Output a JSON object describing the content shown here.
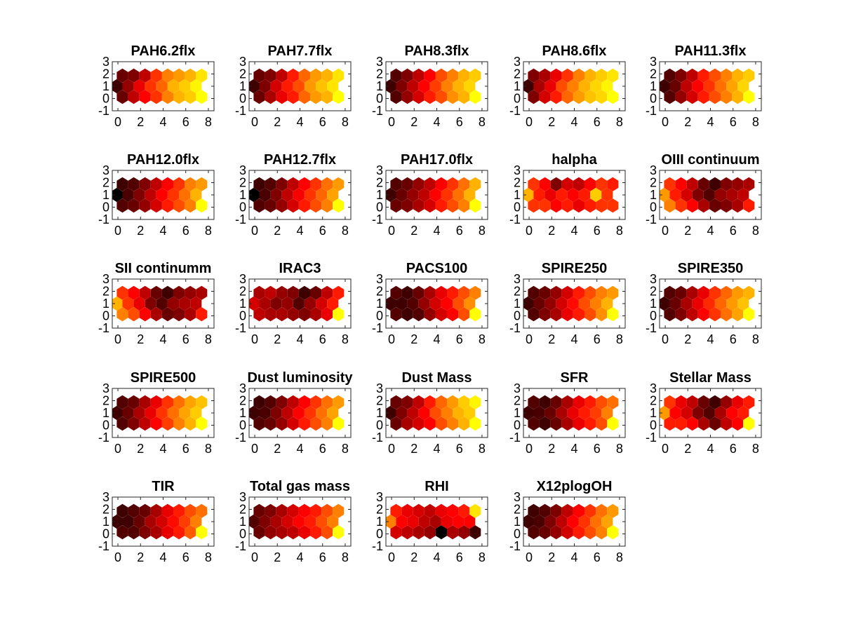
{
  "chart_data": {
    "type": "heatmap",
    "grid": false,
    "colormap": "hot",
    "xlim": [
      -0.5,
      8.5
    ],
    "ylim": [
      -1,
      3
    ],
    "xticks": [
      "0",
      "2",
      "4",
      "6",
      "8"
    ],
    "yticks": [
      "-1",
      "0",
      "1",
      "2",
      "3"
    ],
    "colors": {
      "low": "#000000",
      "high": "#ffff00"
    },
    "hex_grid": {
      "columns": 8,
      "rows": 3
    },
    "panels": [
      {
        "title": "PAH6.2flx",
        "values": [
          [
            0.15,
            0.2,
            0.35,
            0.6,
            0.75,
            0.8,
            0.85,
            0.95
          ],
          [
            0.05,
            0.25,
            0.45,
            0.6,
            0.7,
            0.85,
            0.9,
            0.98
          ],
          [
            0.15,
            0.35,
            0.5,
            0.6,
            0.75,
            0.85,
            0.9,
            1.0
          ]
        ]
      },
      {
        "title": "PAH7.7flx",
        "values": [
          [
            0.15,
            0.2,
            0.35,
            0.55,
            0.7,
            0.8,
            0.85,
            0.95
          ],
          [
            0.05,
            0.2,
            0.4,
            0.55,
            0.65,
            0.8,
            0.88,
            0.95
          ],
          [
            0.15,
            0.3,
            0.45,
            0.55,
            0.7,
            0.8,
            0.85,
            1.0
          ]
        ]
      },
      {
        "title": "PAH8.3flx",
        "values": [
          [
            0.1,
            0.2,
            0.35,
            0.5,
            0.65,
            0.75,
            0.85,
            0.9
          ],
          [
            0.05,
            0.2,
            0.35,
            0.5,
            0.62,
            0.75,
            0.85,
            0.92
          ],
          [
            0.1,
            0.25,
            0.4,
            0.55,
            0.65,
            0.78,
            0.85,
            1.0
          ]
        ]
      },
      {
        "title": "PAH8.6flx",
        "values": [
          [
            0.2,
            0.3,
            0.45,
            0.6,
            0.75,
            0.85,
            0.9,
            0.95
          ],
          [
            0.05,
            0.3,
            0.45,
            0.65,
            0.75,
            0.85,
            0.92,
            0.98
          ],
          [
            0.2,
            0.4,
            0.55,
            0.7,
            0.8,
            0.88,
            0.92,
            1.0
          ]
        ]
      },
      {
        "title": "PAH11.3flx",
        "values": [
          [
            0.1,
            0.2,
            0.35,
            0.55,
            0.65,
            0.75,
            0.85,
            0.9
          ],
          [
            0.05,
            0.15,
            0.35,
            0.5,
            0.6,
            0.72,
            0.82,
            0.92
          ],
          [
            0.1,
            0.25,
            0.4,
            0.55,
            0.65,
            0.75,
            0.85,
            1.0
          ]
        ]
      },
      {
        "title": "PAH12.0flx",
        "values": [
          [
            0.05,
            0.1,
            0.2,
            0.35,
            0.5,
            0.6,
            0.75,
            0.8
          ],
          [
            0.0,
            0.08,
            0.2,
            0.35,
            0.5,
            0.6,
            0.72,
            0.85
          ],
          [
            0.1,
            0.15,
            0.25,
            0.4,
            0.55,
            0.65,
            0.75,
            1.0
          ]
        ]
      },
      {
        "title": "PAH12.7flx",
        "values": [
          [
            0.05,
            0.1,
            0.2,
            0.35,
            0.5,
            0.6,
            0.72,
            0.8
          ],
          [
            0.0,
            0.08,
            0.2,
            0.35,
            0.48,
            0.6,
            0.7,
            0.82
          ],
          [
            0.1,
            0.15,
            0.25,
            0.4,
            0.55,
            0.65,
            0.75,
            1.0
          ]
        ]
      },
      {
        "title": "PAH17.0flx",
        "values": [
          [
            0.1,
            0.15,
            0.25,
            0.35,
            0.5,
            0.6,
            0.72,
            0.85
          ],
          [
            0.05,
            0.15,
            0.25,
            0.35,
            0.5,
            0.6,
            0.72,
            0.85
          ],
          [
            0.15,
            0.2,
            0.3,
            0.4,
            0.55,
            0.65,
            0.75,
            1.0
          ]
        ]
      },
      {
        "title": "halpha",
        "values": [
          [
            0.6,
            0.5,
            0.2,
            0.4,
            0.35,
            0.5,
            0.6,
            0.55
          ],
          [
            0.85,
            0.55,
            0.45,
            0.55,
            0.5,
            0.55,
            0.9,
            0.6
          ],
          [
            0.6,
            0.6,
            0.5,
            0.55,
            0.45,
            0.55,
            0.6,
            0.6
          ]
        ]
      },
      {
        "title": "OIII continuum",
        "values": [
          [
            0.6,
            0.5,
            0.35,
            0.15,
            0.05,
            0.2,
            0.25,
            0.3
          ],
          [
            0.8,
            0.55,
            0.4,
            0.2,
            0.1,
            0.25,
            0.3,
            0.35
          ],
          [
            0.75,
            0.6,
            0.5,
            0.3,
            0.15,
            0.2,
            0.3,
            0.55
          ]
        ]
      },
      {
        "title": "SII continumm",
        "values": [
          [
            0.6,
            0.5,
            0.35,
            0.15,
            0.05,
            0.2,
            0.25,
            0.3
          ],
          [
            0.85,
            0.6,
            0.45,
            0.2,
            0.1,
            0.25,
            0.3,
            0.35
          ],
          [
            0.75,
            0.65,
            0.5,
            0.3,
            0.15,
            0.2,
            0.3,
            0.55
          ]
        ]
      },
      {
        "title": "IRAC3",
        "values": [
          [
            0.3,
            0.35,
            0.25,
            0.2,
            0.05,
            0.15,
            0.35,
            0.55
          ],
          [
            0.4,
            0.3,
            0.2,
            0.25,
            0.1,
            0.25,
            0.4,
            0.55
          ],
          [
            0.35,
            0.3,
            0.3,
            0.25,
            0.2,
            0.3,
            0.45,
            1.0
          ]
        ]
      },
      {
        "title": "PACS100",
        "values": [
          [
            0.1,
            0.05,
            0.15,
            0.3,
            0.45,
            0.55,
            0.65,
            0.75
          ],
          [
            0.05,
            0.05,
            0.1,
            0.25,
            0.4,
            0.5,
            0.65,
            0.78
          ],
          [
            0.1,
            0.05,
            0.1,
            0.25,
            0.4,
            0.5,
            0.65,
            1.0
          ]
        ]
      },
      {
        "title": "SPIRE250",
        "values": [
          [
            0.1,
            0.15,
            0.25,
            0.4,
            0.55,
            0.65,
            0.75,
            0.8
          ],
          [
            0.05,
            0.15,
            0.25,
            0.4,
            0.52,
            0.65,
            0.75,
            0.85
          ],
          [
            0.1,
            0.2,
            0.3,
            0.45,
            0.55,
            0.65,
            0.78,
            1.0
          ]
        ]
      },
      {
        "title": "SPIRE350",
        "values": [
          [
            0.1,
            0.15,
            0.3,
            0.45,
            0.6,
            0.7,
            0.8,
            0.85
          ],
          [
            0.05,
            0.15,
            0.3,
            0.45,
            0.58,
            0.7,
            0.8,
            0.88
          ],
          [
            0.1,
            0.2,
            0.35,
            0.5,
            0.6,
            0.72,
            0.82,
            1.0
          ]
        ]
      },
      {
        "title": "SPIRE500",
        "values": [
          [
            0.1,
            0.15,
            0.3,
            0.45,
            0.6,
            0.72,
            0.82,
            0.88
          ],
          [
            0.05,
            0.15,
            0.3,
            0.45,
            0.6,
            0.72,
            0.82,
            0.9
          ],
          [
            0.1,
            0.2,
            0.35,
            0.5,
            0.62,
            0.75,
            0.85,
            1.0
          ]
        ]
      },
      {
        "title": "Dust luminosity",
        "values": [
          [
            0.05,
            0.1,
            0.2,
            0.35,
            0.5,
            0.6,
            0.72,
            0.8
          ],
          [
            0.05,
            0.08,
            0.2,
            0.35,
            0.5,
            0.6,
            0.72,
            0.82
          ],
          [
            0.1,
            0.15,
            0.25,
            0.4,
            0.55,
            0.65,
            0.75,
            1.0
          ]
        ]
      },
      {
        "title": "Dust Mass",
        "values": [
          [
            0.15,
            0.2,
            0.35,
            0.55,
            0.7,
            0.8,
            0.9,
            0.98
          ],
          [
            0.05,
            0.2,
            0.35,
            0.5,
            0.65,
            0.75,
            0.85,
            0.9
          ],
          [
            0.15,
            0.3,
            0.4,
            0.5,
            0.65,
            0.75,
            0.85,
            1.0
          ]
        ]
      },
      {
        "title": "SFR",
        "values": [
          [
            0.1,
            0.05,
            0.15,
            0.3,
            0.45,
            0.55,
            0.65,
            0.72
          ],
          [
            0.05,
            0.08,
            0.15,
            0.3,
            0.45,
            0.55,
            0.62,
            0.75
          ],
          [
            0.1,
            0.05,
            0.15,
            0.3,
            0.45,
            0.55,
            0.65,
            1.0
          ]
        ]
      },
      {
        "title": "Stellar Mass",
        "values": [
          [
            0.6,
            0.45,
            0.35,
            0.15,
            0.05,
            0.25,
            0.45,
            0.55
          ],
          [
            0.8,
            0.5,
            0.4,
            0.2,
            0.1,
            0.3,
            0.5,
            0.55
          ],
          [
            0.55,
            0.55,
            0.5,
            0.3,
            0.15,
            0.35,
            0.5,
            1.0
          ]
        ]
      },
      {
        "title": "TIR",
        "values": [
          [
            0.05,
            0.1,
            0.15,
            0.3,
            0.45,
            0.55,
            0.65,
            0.72
          ],
          [
            0.05,
            0.05,
            0.15,
            0.3,
            0.4,
            0.52,
            0.62,
            0.75
          ],
          [
            0.1,
            0.1,
            0.2,
            0.3,
            0.45,
            0.55,
            0.68,
            1.0
          ]
        ]
      },
      {
        "title": "Total gas mass",
        "values": [
          [
            0.15,
            0.2,
            0.3,
            0.4,
            0.5,
            0.55,
            0.65,
            0.75
          ],
          [
            0.1,
            0.2,
            0.3,
            0.4,
            0.5,
            0.55,
            0.65,
            0.75
          ],
          [
            0.15,
            0.25,
            0.3,
            0.35,
            0.45,
            0.55,
            0.65,
            1.0
          ]
        ]
      },
      {
        "title": "RHI",
        "values": [
          [
            0.55,
            0.45,
            0.4,
            0.35,
            0.45,
            0.5,
            0.55,
            0.95
          ],
          [
            0.75,
            0.5,
            0.45,
            0.35,
            0.3,
            0.45,
            0.5,
            0.5
          ],
          [
            0.4,
            0.35,
            0.3,
            0.25,
            0.0,
            0.3,
            0.25,
            0.05
          ]
        ]
      },
      {
        "title": "X12plogOH",
        "values": [
          [
            0.05,
            0.1,
            0.2,
            0.35,
            0.5,
            0.6,
            0.72,
            0.8
          ],
          [
            0.05,
            0.08,
            0.2,
            0.35,
            0.5,
            0.6,
            0.72,
            0.82
          ],
          [
            0.1,
            0.15,
            0.25,
            0.4,
            0.55,
            0.65,
            0.75,
            1.0
          ]
        ]
      }
    ]
  }
}
